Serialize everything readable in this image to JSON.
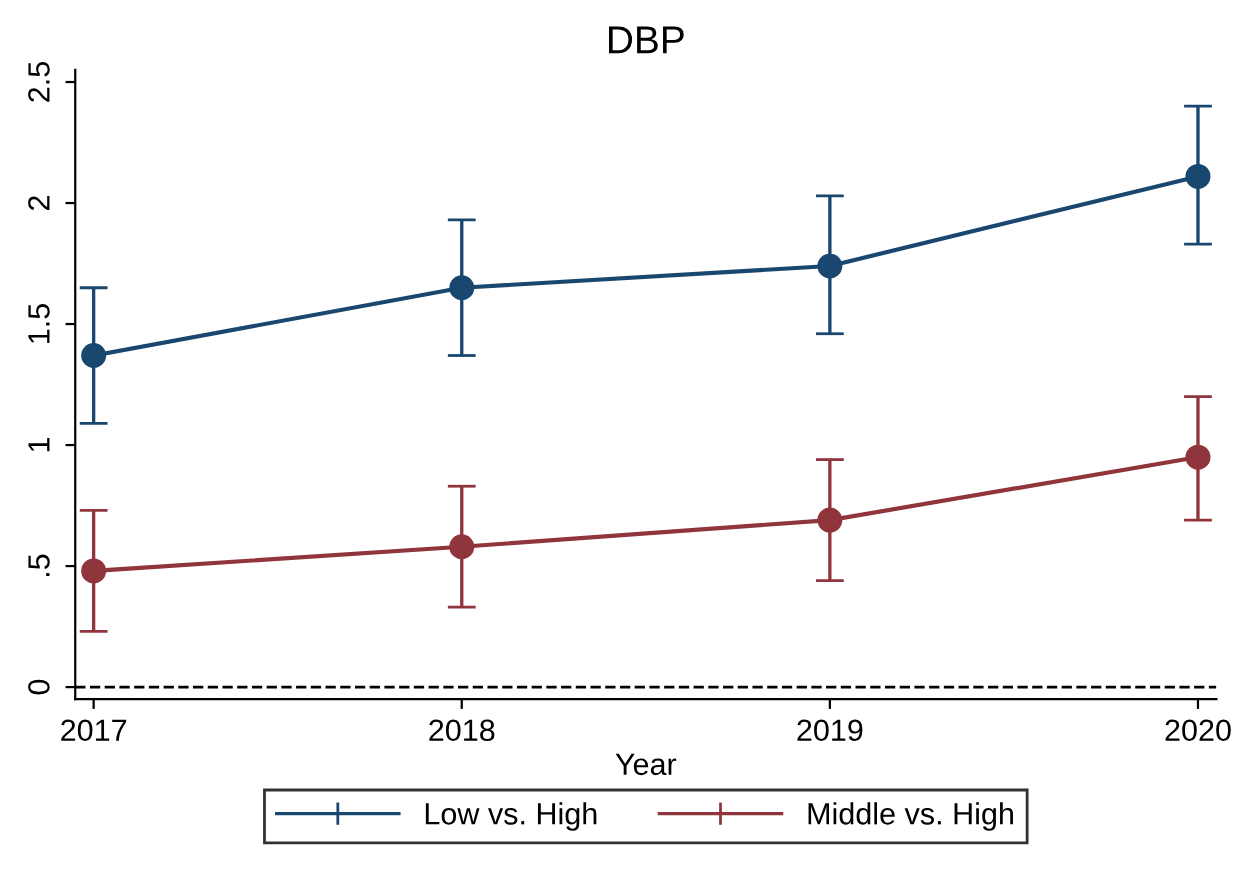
{
  "chart_data": {
    "type": "line",
    "title": "DBP",
    "xlabel": "Year",
    "x": [
      2017,
      2018,
      2019,
      2020
    ],
    "series": [
      {
        "name": "Low vs. High",
        "color": "#1a476f",
        "values": [
          1.37,
          1.65,
          1.74,
          2.11
        ],
        "errors": [
          [
            1.09,
            1.65
          ],
          [
            1.37,
            1.93
          ],
          [
            1.46,
            2.03
          ],
          [
            1.83,
            2.4
          ]
        ]
      },
      {
        "name": "Middle vs. High",
        "color": "#90353b",
        "values": [
          0.48,
          0.58,
          0.69,
          0.95
        ],
        "errors": [
          [
            0.23,
            0.73
          ],
          [
            0.33,
            0.83
          ],
          [
            0.44,
            0.94
          ],
          [
            0.69,
            1.2
          ]
        ]
      }
    ],
    "xlim": [
      2016.95,
      2020.05
    ],
    "xticks": [
      2017,
      2018,
      2019,
      2020
    ],
    "ylim": [
      -0.05,
      2.55
    ],
    "yticks": [
      0,
      {
        "value": 0.5,
        "label": ".5"
      },
      1,
      1.5,
      2,
      2.5
    ],
    "ref_lines": [
      {
        "axis": "y",
        "value": 0,
        "color": "#000000",
        "line_style": "dashed"
      }
    ],
    "marker": "circle",
    "line_style": "solid",
    "grid": false,
    "legend": "bottom"
  }
}
